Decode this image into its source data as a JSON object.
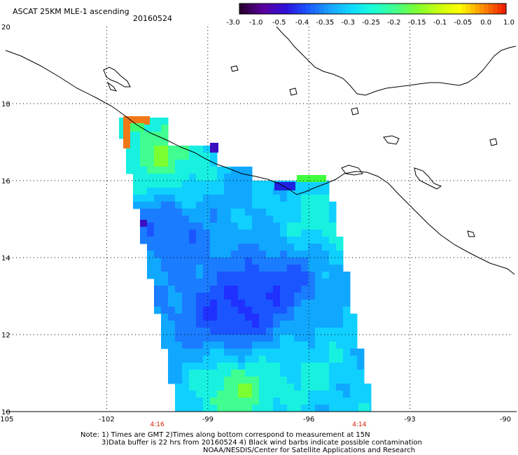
{
  "header": {
    "title": "ASCAT 25KM MLE-1 ascending",
    "date": "20160524"
  },
  "colorbar": {
    "ticks": [
      "-3.0",
      "-1.0",
      "-0.5",
      "-0.4",
      "-0.35",
      "-0.3",
      "-0.25",
      "-0.2",
      "-0.15",
      "-0.1",
      "-0.05",
      "0.0",
      "1.0"
    ],
    "colors": [
      "#2a0035",
      "#5a00a0",
      "#3010d8",
      "#1a55ff",
      "#1aa0ff",
      "#10d8ff",
      "#18ffd8",
      "#40ff90",
      "#7cff30",
      "#c8ff10",
      "#ffff00",
      "#ff9000",
      "#f02000"
    ]
  },
  "map": {
    "lat_labels": [
      "20",
      "18",
      "16",
      "14",
      "12",
      "10"
    ],
    "lon_labels": [
      "-105",
      "-102",
      "-99",
      "-96",
      "-93",
      "-90"
    ],
    "lon_range": [
      -105,
      -90
    ],
    "lat_range": [
      10,
      20
    ],
    "times": [
      {
        "label": "4:16",
        "lon": -100.5
      },
      {
        "label": "4:14",
        "lon": -94.5
      }
    ],
    "time_color": "#d02000",
    "coastline_color": "#000000",
    "grid_color": "#000000"
  },
  "footer": {
    "line1": "Note: 1) Times are GMT 2)Times along bottom correspond to measurement at 15N",
    "line2": "3)Data buffer is 22 hrs from 20160524 4) Black wind barbs indicate possible contamination",
    "line3": "NOAA/NESDIS/Center for Satellite Applications and Research"
  }
}
